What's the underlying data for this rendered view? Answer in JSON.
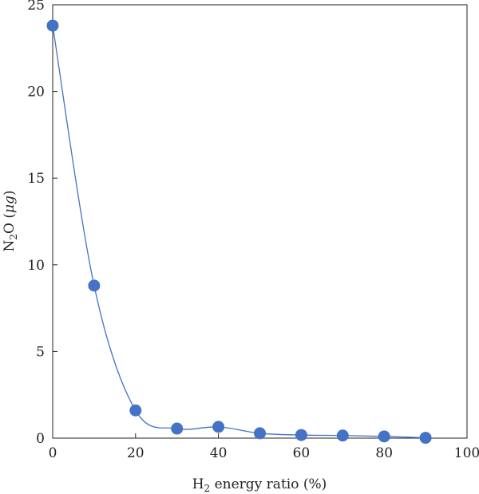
{
  "chart_data": {
    "type": "scatter",
    "title": "",
    "xlabel": {
      "pre": "H",
      "sub": "2",
      "post": " energy ratio (%)"
    },
    "ylabel": {
      "pre": "N",
      "sub": "2",
      "mid": "O (",
      "italic": "μg",
      "post": ")"
    },
    "xlim": [
      0,
      100
    ],
    "ylim": [
      0,
      25
    ],
    "xticks": [
      0,
      20,
      40,
      60,
      80,
      100
    ],
    "yticks": [
      0,
      5,
      10,
      15,
      20,
      25
    ],
    "series": [
      {
        "color": "#4472c4",
        "smooth_line": true,
        "x": [
          0,
          10,
          20,
          30,
          40,
          50,
          60,
          70,
          80,
          90
        ],
        "y": [
          23.8,
          8.8,
          1.6,
          0.55,
          0.65,
          0.28,
          0.18,
          0.15,
          0.1,
          0.02
        ]
      }
    ],
    "grid": false,
    "legend": "none"
  }
}
